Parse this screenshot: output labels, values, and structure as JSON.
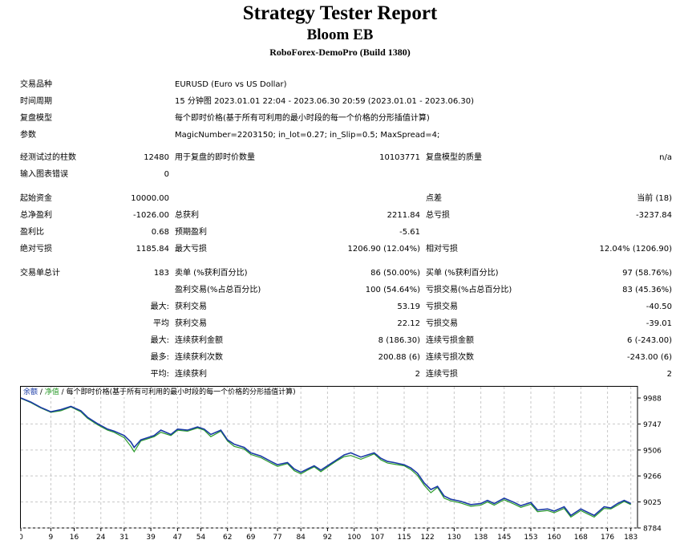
{
  "header": {
    "title": "Strategy Tester Report",
    "expert": "Bloom EB",
    "server": "RoboForex-DemoPro (Build 1380)"
  },
  "settings": {
    "symbol_label": "交易品种",
    "symbol": "EURUSD (Euro vs US Dollar)",
    "period_label": "时间周期",
    "period": "15 分钟图 2023.01.01 22:04 - 2023.06.30 20:59 (2023.01.01 - 2023.06.30)",
    "model_label": "复盘模型",
    "model": "每个即时价格(基于所有可利用的最小时段的每一个价格的分形插值计算)",
    "params_label": "参数",
    "params": "MagicNumber=2203150; in_lot=0.27; in_Slip=0.5; MaxSpread=4;"
  },
  "stats": {
    "bars_label": "经测试过的柱数",
    "bars": "12480",
    "ticks_label": "用于复盘的即时价数量",
    "ticks": "10103771",
    "quality_label": "复盘模型的质量",
    "quality": "n/a",
    "errors_label": "输入图表错误",
    "errors": "0",
    "deposit_label": "起始资金",
    "deposit": "10000.00",
    "spread_label": "点差",
    "spread": "当前 (18)",
    "net_label": "总净盈利",
    "net": "-1026.00",
    "gross_profit_label": "总获利",
    "gross_profit": "2211.84",
    "gross_loss_label": "总亏损",
    "gross_loss": "-3237.84",
    "pf_label": "盈利比",
    "pf": "0.68",
    "payoff_label": "预期盈利",
    "payoff": "-5.61",
    "abs_dd_label": "绝对亏损",
    "abs_dd": "1185.84",
    "max_dd_label": "最大亏损",
    "max_dd": "1206.90 (12.04%)",
    "rel_dd_label": "相对亏损",
    "rel_dd": "12.04% (1206.90)",
    "trades_label": "交易单总计",
    "trades": "183",
    "short_label": "卖单 (%获利百分比)",
    "short": "86 (50.00%)",
    "long_label": "买单 (%获利百分比)",
    "long": "97 (58.76%)",
    "profit_trades_label": "盈利交易(%占总百分比)",
    "profit_trades": "100 (54.64%)",
    "loss_trades_label": "亏损交易(%占总百分比)",
    "loss_trades": "83 (45.36%)",
    "largest_label": "最大:",
    "largest_profit_label": "获利交易",
    "largest_profit": "53.19",
    "largest_loss_label": "亏损交易",
    "largest_loss": "-40.50",
    "average_label": "平均",
    "avg_profit_label": "获利交易",
    "avg_profit": "22.12",
    "avg_loss_label": "亏损交易",
    "avg_loss": "-39.01",
    "maximum_label": "最大:",
    "max_cons_wins_label": "连续获利金额",
    "max_cons_wins": "8 (186.30)",
    "max_cons_losses_label": "连续亏损金额",
    "max_cons_losses": "6 (-243.00)",
    "maximal_label": "最多:",
    "max_cons_profit_label": "连续获利次数",
    "max_cons_profit": "200.88 (6)",
    "max_cons_loss_label": "连续亏损次数",
    "max_cons_loss": "-243.00 (6)",
    "avg2_label": "平均:",
    "avg_cons_wins_label": "连续获利",
    "avg_cons_wins": "2",
    "avg_cons_losses_label": "连续亏损",
    "avg_cons_losses": "2"
  },
  "chart_legend": {
    "balance": "余额",
    "sep1": " / ",
    "equity": "净值",
    "sep2": " / ",
    "model": "每个即时价格(基于所有可利用的最小时段的每一个价格的分形插值计算)"
  },
  "chart_data": {
    "type": "line",
    "x_ticks": [
      0,
      9,
      16,
      24,
      31,
      39,
      47,
      54,
      62,
      69,
      77,
      84,
      92,
      100,
      107,
      115,
      122,
      130,
      138,
      145,
      153,
      160,
      168,
      176,
      183
    ],
    "y_ticks": [
      9988,
      9747,
      9506,
      9266,
      9025,
      8784
    ],
    "ylim": [
      8784,
      9988
    ],
    "xlim": [
      0,
      185
    ],
    "colors": {
      "balance": "#1a3aa6",
      "equity": "#2a9a2a",
      "grid": "#c8c8c8"
    },
    "series": [
      {
        "name": "余额",
        "x": [
          0,
          3,
          6,
          9,
          12,
          15,
          18,
          20,
          23,
          26,
          28,
          31,
          33,
          34,
          36,
          38,
          40,
          42,
          45,
          47,
          50,
          53,
          55,
          57,
          60,
          62,
          64,
          67,
          69,
          72,
          75,
          77,
          80,
          82,
          84,
          86,
          88,
          90,
          93,
          95,
          97,
          99,
          102,
          104,
          106,
          108,
          110,
          112,
          115,
          117,
          119,
          121,
          123,
          125,
          127,
          129,
          132,
          135,
          138,
          140,
          142,
          145,
          148,
          150,
          153,
          155,
          158,
          160,
          163,
          165,
          168,
          170,
          172,
          175,
          177,
          179,
          181,
          183
        ],
        "y": [
          9988,
          9950,
          9900,
          9860,
          9880,
          9910,
          9870,
          9810,
          9750,
          9700,
          9680,
          9640,
          9580,
          9530,
          9600,
          9620,
          9640,
          9690,
          9650,
          9700,
          9690,
          9720,
          9700,
          9650,
          9690,
          9600,
          9560,
          9530,
          9480,
          9450,
          9400,
          9370,
          9390,
          9330,
          9300,
          9330,
          9360,
          9320,
          9380,
          9420,
          9460,
          9480,
          9440,
          9460,
          9480,
          9430,
          9400,
          9390,
          9370,
          9340,
          9290,
          9200,
          9140,
          9170,
          9080,
          9050,
          9030,
          9000,
          9010,
          9040,
          9010,
          9060,
          9020,
          8990,
          9020,
          8950,
          8960,
          8940,
          8980,
          8900,
          8960,
          8930,
          8900,
          8980,
          8970,
          9010,
          9040,
          9010
        ]
      },
      {
        "name": "净值",
        "x": [
          0,
          3,
          6,
          9,
          12,
          15,
          18,
          20,
          23,
          26,
          28,
          31,
          33,
          34,
          36,
          38,
          40,
          42,
          45,
          47,
          50,
          53,
          55,
          57,
          60,
          62,
          64,
          67,
          69,
          72,
          75,
          77,
          80,
          82,
          84,
          86,
          88,
          90,
          93,
          95,
          97,
          99,
          102,
          104,
          106,
          108,
          110,
          112,
          115,
          117,
          119,
          121,
          123,
          125,
          127,
          129,
          132,
          135,
          138,
          140,
          142,
          145,
          148,
          150,
          153,
          155,
          158,
          160,
          163,
          165,
          168,
          170,
          172,
          175,
          177,
          179,
          181,
          183
        ],
        "y": [
          9985,
          9945,
          9895,
          9855,
          9870,
          9905,
          9860,
          9800,
          9740,
          9690,
          9670,
          9620,
          9540,
          9490,
          9590,
          9610,
          9630,
          9670,
          9640,
          9690,
          9680,
          9710,
          9690,
          9630,
          9680,
          9590,
          9540,
          9515,
          9465,
          9435,
          9385,
          9355,
          9380,
          9315,
          9285,
          9320,
          9350,
          9305,
          9370,
          9410,
          9445,
          9455,
          9420,
          9445,
          9470,
          9415,
          9385,
          9375,
          9360,
          9325,
          9270,
          9180,
          9110,
          9160,
          9060,
          9035,
          9015,
          8985,
          8995,
          9025,
          8995,
          9045,
          9005,
          8975,
          9005,
          8935,
          8945,
          8925,
          8965,
          8885,
          8945,
          8915,
          8885,
          8965,
          8960,
          8995,
          9030,
          9000
        ]
      }
    ]
  }
}
